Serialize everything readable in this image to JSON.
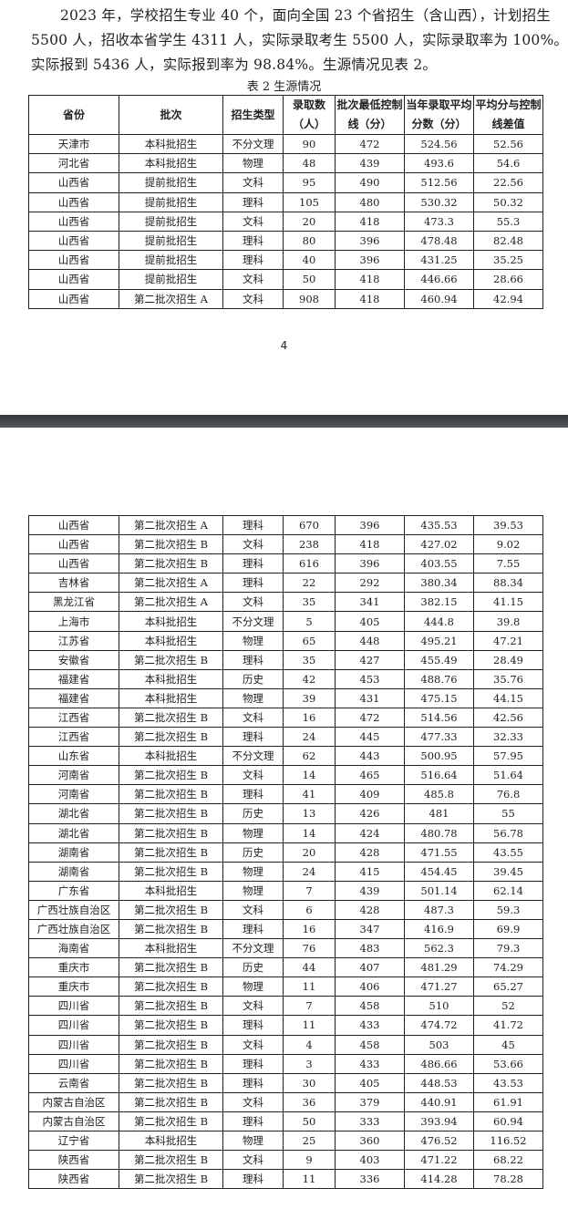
{
  "paragraph": [
    "2023 年，学校招生专业 40 个，面向全国 23 个省招生（含山西），计划招生",
    "5500 人，招收本省学生 4311 人，实际录取考生 5500 人，实际录取率为 100%。",
    "实际报到 5436 人，实际报到率为 98.84%。生源情况见表 2。"
  ],
  "table_caption": "表 2  生源情况",
  "headers": [
    "省份",
    "批次",
    "招生类型",
    "录取数（人）",
    "批次最低控制线（分）",
    "当年录取平均分数（分）",
    "平均分与控制线差值"
  ],
  "page_number": "4",
  "page1_rows": [
    [
      "天津市",
      "本科批招生",
      "不分文理",
      "90",
      "472",
      "524.56",
      "52.56"
    ],
    [
      "河北省",
      "本科批招生",
      "物理",
      "48",
      "439",
      "493.6",
      "54.6"
    ],
    [
      "山西省",
      "提前批招生",
      "文科",
      "95",
      "490",
      "512.56",
      "22.56"
    ],
    [
      "山西省",
      "提前批招生",
      "理科",
      "105",
      "480",
      "530.32",
      "50.32"
    ],
    [
      "山西省",
      "提前批招生",
      "文科",
      "20",
      "418",
      "473.3",
      "55.3"
    ],
    [
      "山西省",
      "提前批招生",
      "理科",
      "80",
      "396",
      "478.48",
      "82.48"
    ],
    [
      "山西省",
      "提前批招生",
      "理科",
      "40",
      "396",
      "431.25",
      "35.25"
    ],
    [
      "山西省",
      "提前批招生",
      "文科",
      "50",
      "418",
      "446.66",
      "28.66"
    ],
    [
      "山西省",
      "第二批次招生 A",
      "文科",
      "908",
      "418",
      "460.94",
      "42.94"
    ]
  ],
  "page2_rows": [
    [
      "山西省",
      "第二批次招生 A",
      "理科",
      "670",
      "396",
      "435.53",
      "39.53"
    ],
    [
      "山西省",
      "第二批次招生 B",
      "文科",
      "238",
      "418",
      "427.02",
      "9.02"
    ],
    [
      "山西省",
      "第二批次招生 B",
      "理科",
      "616",
      "396",
      "403.55",
      "7.55"
    ],
    [
      "吉林省",
      "第二批次招生 A",
      "理科",
      "22",
      "292",
      "380.34",
      "88.34"
    ],
    [
      "黑龙江省",
      "第二批次招生 A",
      "文科",
      "35",
      "341",
      "382.15",
      "41.15"
    ],
    [
      "上海市",
      "本科批招生",
      "不分文理",
      "5",
      "405",
      "444.8",
      "39.8"
    ],
    [
      "江苏省",
      "本科批招生",
      "物理",
      "65",
      "448",
      "495.21",
      "47.21"
    ],
    [
      "安徽省",
      "第二批次招生 B",
      "理科",
      "35",
      "427",
      "455.49",
      "28.49"
    ],
    [
      "福建省",
      "本科批招生",
      "历史",
      "42",
      "453",
      "488.76",
      "35.76"
    ],
    [
      "福建省",
      "本科批招生",
      "物理",
      "39",
      "431",
      "475.15",
      "44.15"
    ],
    [
      "江西省",
      "第二批次招生 B",
      "文科",
      "16",
      "472",
      "514.56",
      "42.56"
    ],
    [
      "江西省",
      "第二批次招生 B",
      "理科",
      "24",
      "445",
      "477.33",
      "32.33"
    ],
    [
      "山东省",
      "本科批招生",
      "不分文理",
      "62",
      "443",
      "500.95",
      "57.95"
    ],
    [
      "河南省",
      "第二批次招生 B",
      "文科",
      "14",
      "465",
      "516.64",
      "51.64"
    ],
    [
      "河南省",
      "第二批次招生 B",
      "理科",
      "41",
      "409",
      "485.8",
      "76.8"
    ],
    [
      "湖北省",
      "第二批次招生 B",
      "历史",
      "13",
      "426",
      "481",
      "55"
    ],
    [
      "湖北省",
      "第二批次招生 B",
      "物理",
      "14",
      "424",
      "480.78",
      "56.78"
    ],
    [
      "湖南省",
      "第二批次招生 B",
      "历史",
      "20",
      "428",
      "471.55",
      "43.55"
    ],
    [
      "湖南省",
      "第二批次招生 B",
      "物理",
      "24",
      "415",
      "454.45",
      "39.45"
    ],
    [
      "广东省",
      "本科批招生",
      "物理",
      "7",
      "439",
      "501.14",
      "62.14"
    ],
    [
      "广西壮族自治区",
      "第二批次招生 B",
      "文科",
      "6",
      "428",
      "487.3",
      "59.3"
    ],
    [
      "广西壮族自治区",
      "第二批次招生 B",
      "理科",
      "16",
      "347",
      "416.9",
      "69.9"
    ],
    [
      "海南省",
      "本科批招生",
      "不分文理",
      "76",
      "483",
      "562.3",
      "79.3"
    ],
    [
      "重庆市",
      "第二批次招生 B",
      "历史",
      "44",
      "407",
      "481.29",
      "74.29"
    ],
    [
      "重庆市",
      "第二批次招生 B",
      "物理",
      "11",
      "406",
      "471.27",
      "65.27"
    ],
    [
      "四川省",
      "第二批次招生 B",
      "文科",
      "7",
      "458",
      "510",
      "52"
    ],
    [
      "四川省",
      "第二批次招生 B",
      "理科",
      "11",
      "433",
      "474.72",
      "41.72"
    ],
    [
      "四川省",
      "第二批次招生 B",
      "文科",
      "4",
      "458",
      "503",
      "45"
    ],
    [
      "四川省",
      "第二批次招生 B",
      "理科",
      "3",
      "433",
      "486.66",
      "53.66"
    ],
    [
      "云南省",
      "第二批次招生 B",
      "理科",
      "30",
      "405",
      "448.53",
      "43.53"
    ],
    [
      "内蒙古自治区",
      "第二批次招生 B",
      "文科",
      "36",
      "379",
      "440.91",
      "61.91"
    ],
    [
      "内蒙古自治区",
      "第二批次招生 B",
      "理科",
      "50",
      "333",
      "393.94",
      "60.94"
    ],
    [
      "辽宁省",
      "本科批招生",
      "物理",
      "25",
      "360",
      "476.52",
      "116.52"
    ],
    [
      "陕西省",
      "第二批次招生 B",
      "文科",
      "9",
      "403",
      "471.22",
      "68.22"
    ],
    [
      "陕西省",
      "第二批次招生 B",
      "理科",
      "11",
      "336",
      "414.28",
      "78.28"
    ]
  ]
}
